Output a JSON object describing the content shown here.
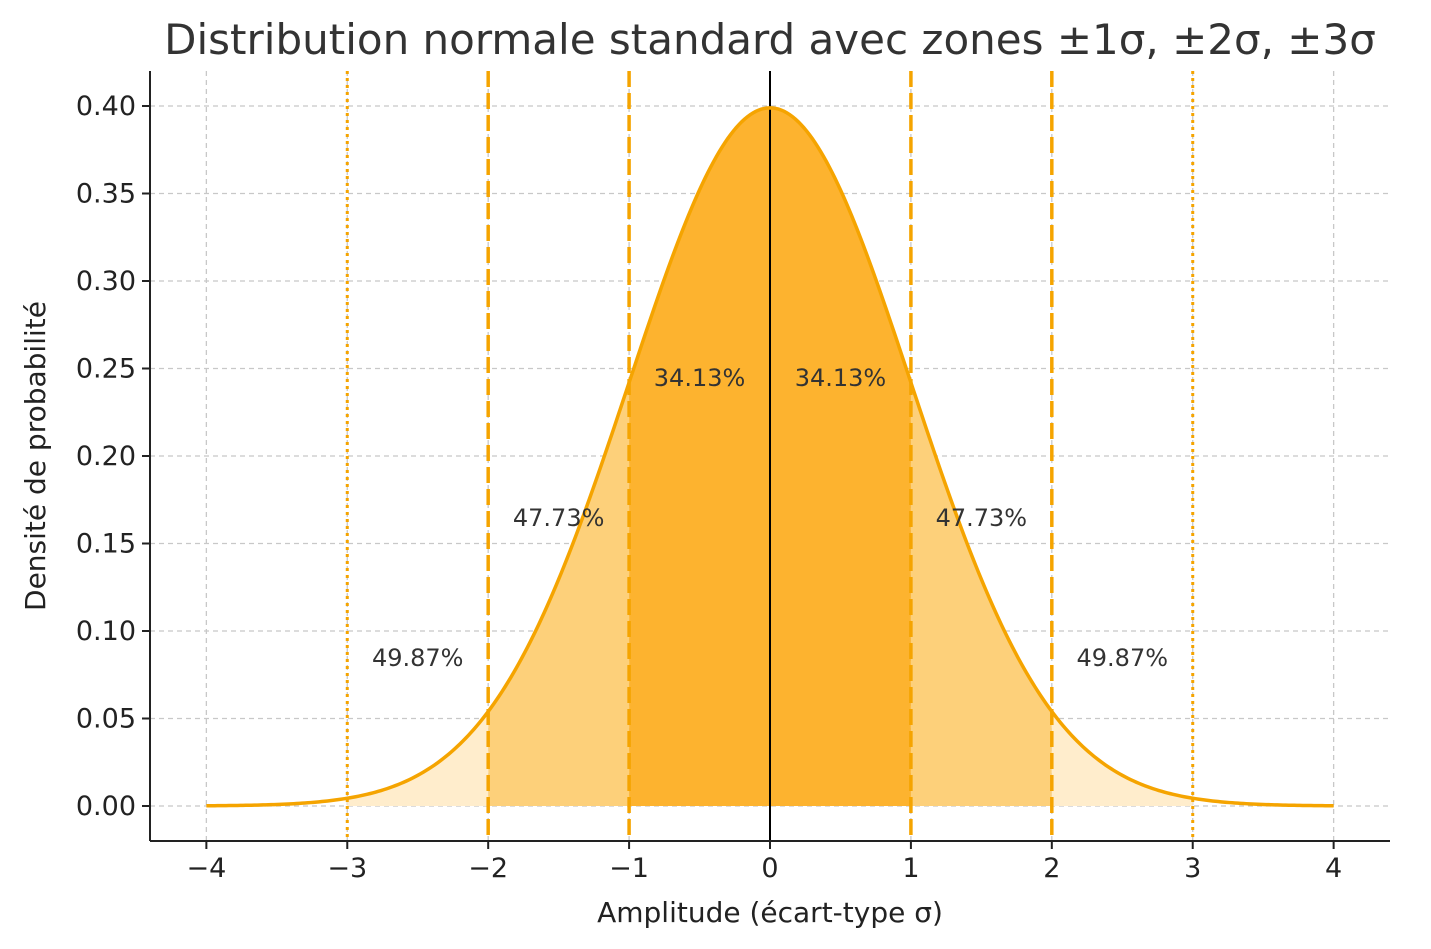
{
  "chart_data": {
    "type": "area",
    "title": "Distribution normale standard avec zones ±1σ, ±2σ, ±3σ",
    "xlabel": "Amplitude (écart-type σ)",
    "ylabel": "Densité de probabilité",
    "xlim": [
      -4.4,
      4.4
    ],
    "ylim": [
      -0.02,
      0.42
    ],
    "x_range": [
      -4,
      4
    ],
    "x_ticks": [
      -4,
      -3,
      -2,
      -1,
      0,
      1,
      2,
      3,
      4
    ],
    "x_tick_labels": [
      "−4",
      "−3",
      "−2",
      "−1",
      "0",
      "1",
      "2",
      "3",
      "4"
    ],
    "y_ticks": [
      0.0,
      0.05,
      0.1,
      0.15,
      0.2,
      0.25,
      0.3,
      0.35,
      0.4
    ],
    "y_tick_labels": [
      "0.00",
      "0.05",
      "0.10",
      "0.15",
      "0.20",
      "0.25",
      "0.30",
      "0.35",
      "0.40"
    ],
    "grid": true,
    "curve": {
      "function": "standard normal pdf",
      "mean": 0,
      "std": 1,
      "color": "#F5A400"
    },
    "zones": [
      {
        "from": -1,
        "to": 1,
        "color": "#FDB32F"
      },
      {
        "from": -2,
        "to": -1,
        "color": "#FDD07A"
      },
      {
        "from": 1,
        "to": 2,
        "color": "#FDD07A"
      },
      {
        "from": -3,
        "to": -2,
        "color": "#FFEDCC"
      },
      {
        "from": 2,
        "to": 3,
        "color": "#FFEDCC"
      }
    ],
    "vlines": [
      {
        "x": -3,
        "style": "dotted"
      },
      {
        "x": -2,
        "style": "dashed"
      },
      {
        "x": -1,
        "style": "dashed"
      },
      {
        "x": 0,
        "style": "solid",
        "color": "#000000"
      },
      {
        "x": 1,
        "style": "dashed"
      },
      {
        "x": 2,
        "style": "dashed"
      },
      {
        "x": 3,
        "style": "dotted"
      }
    ],
    "annotations": [
      {
        "text": "34.13%",
        "x": -0.5,
        "y": 0.24
      },
      {
        "text": "34.13%",
        "x": 0.5,
        "y": 0.24
      },
      {
        "text": "47.73%",
        "x": -1.5,
        "y": 0.16
      },
      {
        "text": "47.73%",
        "x": 1.5,
        "y": 0.16
      },
      {
        "text": "49.87%",
        "x": -2.5,
        "y": 0.08
      },
      {
        "text": "49.87%",
        "x": 2.5,
        "y": 0.08
      }
    ],
    "colors": {
      "line": "#F5A400",
      "vline": "#F5A400"
    }
  }
}
